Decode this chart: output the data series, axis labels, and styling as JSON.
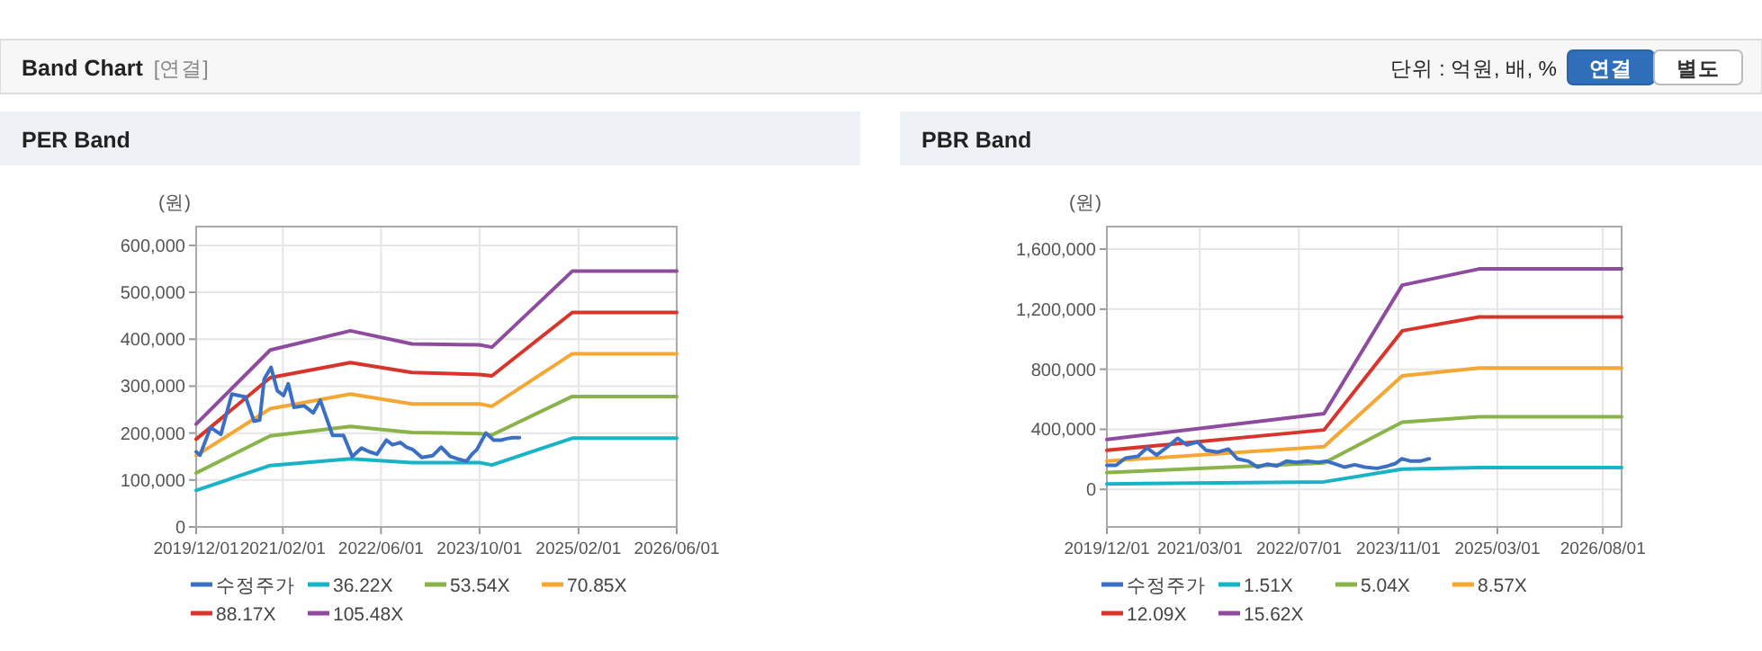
{
  "chart_data": [
    {
      "type": "line",
      "title": "PER Band",
      "ylabel": "(원)",
      "annotations": [
        "Band Chart",
        "[연결]",
        "단위 : 억원, 배, %",
        "연결",
        "별도"
      ],
      "xlim": [
        "2019-12-01",
        "2026-06-01"
      ],
      "ylim": [
        0,
        640000
      ],
      "xticks": [
        {
          "value": "2019-12-01",
          "label": "2019/12/01"
        },
        {
          "value": "2021-02-01",
          "label": "2021/02/01"
        },
        {
          "value": "2022-06-01",
          "label": "2022/06/01"
        },
        {
          "value": "2023-10-01",
          "label": "2023/10/01"
        },
        {
          "value": "2025-02-01",
          "label": "2025/02/01"
        },
        {
          "value": "2026-06-01",
          "label": "2026/06/01"
        }
      ],
      "yticks": [
        0,
        {
          "value": 100000,
          "label": "100,000"
        },
        {
          "value": 200000,
          "label": "200,000"
        },
        {
          "value": 300000,
          "label": "300,000"
        },
        {
          "value": 400000,
          "label": "400,000"
        },
        {
          "value": 500000,
          "label": "500,000"
        },
        {
          "value": 600000,
          "label": "600,000"
        }
      ],
      "grid": true,
      "legend": "bottom",
      "marker": "none",
      "line_style": "solid",
      "series": [
        {
          "name": "수정주가",
          "color": "#3a6fc4",
          "x": [
            "2019-12-01",
            "2019-12-20",
            "2020-02-10",
            "2020-04-01",
            "2020-05-25",
            "2020-08-01",
            "2020-09-12",
            "2020-10-10",
            "2020-11-01",
            "2020-12-05",
            "2021-01-05",
            "2021-02-05",
            "2021-02-28",
            "2021-03-28",
            "2021-05-18",
            "2021-07-01",
            "2021-08-05",
            "2021-10-05",
            "2021-11-28",
            "2022-01-10",
            "2022-02-25",
            "2022-04-05",
            "2022-05-12",
            "2022-06-28",
            "2022-07-28",
            "2022-09-05",
            "2022-10-05",
            "2022-11-05",
            "2022-12-20",
            "2023-02-12",
            "2023-03-25",
            "2023-05-10",
            "2023-06-15",
            "2023-07-28",
            "2023-08-25",
            "2023-09-18",
            "2023-11-01",
            "2023-12-10",
            "2024-01-15",
            "2024-02-12",
            "2024-03-12",
            "2024-04-15"
          ],
          "values": [
            160000,
            153000,
            212000,
            197000,
            283000,
            277000,
            225000,
            228000,
            315000,
            340000,
            290000,
            280000,
            305000,
            255000,
            258000,
            243000,
            270000,
            195000,
            195000,
            150000,
            168000,
            160000,
            155000,
            185000,
            175000,
            180000,
            170000,
            165000,
            148000,
            152000,
            170000,
            150000,
            145000,
            140000,
            155000,
            165000,
            200000,
            185000,
            185000,
            188000,
            190000,
            190000
          ]
        },
        {
          "name": "36.22X",
          "color": "#19b3c6",
          "x": [
            "2019-12-01",
            "2020-12-01",
            "2022-01-01",
            "2022-11-01",
            "2023-10-01",
            "2023-12-01",
            "2025-01-01",
            "2026-06-01"
          ],
          "values": [
            78000,
            131000,
            145000,
            137000,
            137000,
            132000,
            189000,
            189000
          ]
        },
        {
          "name": "53.54X",
          "color": "#8ab34a",
          "x": [
            "2019-12-01",
            "2020-12-01",
            "2022-01-01",
            "2022-11-01",
            "2023-10-01",
            "2023-12-01",
            "2025-01-01",
            "2026-06-01"
          ],
          "values": [
            115000,
            194000,
            214000,
            201000,
            199000,
            196000,
            278000,
            278000
          ]
        },
        {
          "name": "70.85X",
          "color": "#f5a733",
          "x": [
            "2019-12-01",
            "2020-12-01",
            "2022-01-01",
            "2022-11-01",
            "2023-10-01",
            "2023-12-01",
            "2025-01-01",
            "2026-06-01"
          ],
          "values": [
            152000,
            252000,
            283000,
            262000,
            262000,
            257000,
            369000,
            369000
          ]
        },
        {
          "name": "88.17X",
          "color": "#d9342b",
          "x": [
            "2019-12-01",
            "2020-12-01",
            "2022-01-01",
            "2022-11-01",
            "2023-10-01",
            "2023-12-01",
            "2025-01-01",
            "2026-06-01"
          ],
          "values": [
            187000,
            318000,
            350000,
            329000,
            325000,
            322000,
            457000,
            457000
          ]
        },
        {
          "name": "105.48X",
          "color": "#8e4c9e",
          "x": [
            "2019-12-01",
            "2020-12-01",
            "2022-01-01",
            "2022-11-01",
            "2023-10-01",
            "2023-12-01",
            "2025-01-01",
            "2026-06-01"
          ],
          "values": [
            219000,
            377000,
            418000,
            390000,
            388000,
            383000,
            545000,
            545000
          ]
        }
      ]
    },
    {
      "type": "line",
      "title": "PBR Band",
      "ylabel": "(원)",
      "xlim": [
        "2019-12-01",
        "2026-11-01"
      ],
      "ylim": [
        -250000,
        1750000
      ],
      "xticks": [
        {
          "value": "2019-12-01",
          "label": "2019/12/01"
        },
        {
          "value": "2021-03-01",
          "label": "2021/03/01"
        },
        {
          "value": "2022-07-01",
          "label": "2022/07/01"
        },
        {
          "value": "2023-11-01",
          "label": "2023/11/01"
        },
        {
          "value": "2025-03-01",
          "label": "2025/03/01"
        },
        {
          "value": "2026-08-01",
          "label": "2026/08/01"
        }
      ],
      "yticks": [
        0,
        {
          "value": 400000,
          "label": "400,000"
        },
        {
          "value": 800000,
          "label": "800,000"
        },
        {
          "value": 1200000,
          "label": "1,200,000"
        },
        {
          "value": 1600000,
          "label": "1,600,000"
        }
      ],
      "grid": true,
      "legend": "bottom",
      "marker": "none",
      "line_style": "solid",
      "series": [
        {
          "name": "수정주가",
          "color": "#3a6fc4",
          "x": [
            "2019-12-01",
            "2020-01-15",
            "2020-03-01",
            "2020-05-01",
            "2020-06-15",
            "2020-08-01",
            "2020-09-20",
            "2020-11-12",
            "2020-12-28",
            "2021-02-18",
            "2021-04-01",
            "2021-05-25",
            "2021-07-20",
            "2021-09-01",
            "2021-10-25",
            "2021-12-10",
            "2022-01-28",
            "2022-03-15",
            "2022-05-01",
            "2022-06-18",
            "2022-08-15",
            "2022-10-01",
            "2022-11-12",
            "2022-12-28",
            "2023-02-10",
            "2023-04-01",
            "2023-05-20",
            "2023-07-20",
            "2023-09-10",
            "2023-10-18",
            "2023-11-18",
            "2024-01-01",
            "2024-02-15",
            "2024-04-01"
          ],
          "values": [
            160000,
            160000,
            208000,
            220000,
            276000,
            228000,
            280000,
            340000,
            296000,
            316000,
            260000,
            248000,
            268000,
            204000,
            188000,
            148000,
            168000,
            156000,
            188000,
            180000,
            188000,
            180000,
            188000,
            168000,
            148000,
            164000,
            148000,
            140000,
            156000,
            172000,
            204000,
            188000,
            188000,
            204000
          ]
        },
        {
          "name": "1.51X",
          "color": "#19b3c6",
          "x": [
            "2019-12-01",
            "2022-11-01",
            "2023-11-20",
            "2024-12-01",
            "2026-11-01"
          ],
          "values": [
            36000,
            50000,
            135000,
            145000,
            145000
          ]
        },
        {
          "name": "5.04X",
          "color": "#8ab34a",
          "x": [
            "2019-12-01",
            "2022-11-01",
            "2023-11-20",
            "2024-12-01",
            "2026-11-01"
          ],
          "values": [
            112000,
            176000,
            448000,
            484000,
            484000
          ]
        },
        {
          "name": "8.57X",
          "color": "#f5a733",
          "x": [
            "2019-12-01",
            "2022-11-01",
            "2023-11-20",
            "2024-12-01",
            "2026-11-01"
          ],
          "values": [
            188000,
            284000,
            756000,
            808000,
            808000
          ]
        },
        {
          "name": "12.09X",
          "color": "#d9342b",
          "x": [
            "2019-12-01",
            "2022-11-01",
            "2023-11-20",
            "2024-12-01",
            "2026-11-01"
          ],
          "values": [
            260000,
            396000,
            1056000,
            1148000,
            1148000
          ]
        },
        {
          "name": "15.62X",
          "color": "#8e4c9e",
          "x": [
            "2019-12-01",
            "2022-11-01",
            "2023-11-20",
            "2024-12-01",
            "2026-11-01"
          ],
          "values": [
            332000,
            504000,
            1360000,
            1468000,
            1468000
          ]
        }
      ]
    }
  ]
}
